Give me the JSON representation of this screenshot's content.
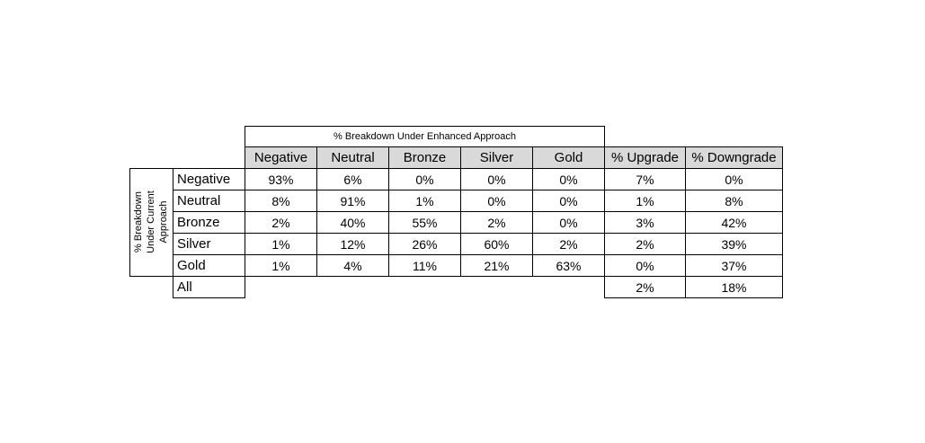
{
  "table": {
    "column_group_label": "% Breakdown Under Enhanced Approach",
    "row_group_label": "% Breakdown Under Current Approach",
    "columns": [
      "Negative",
      "Neutral",
      "Bronze",
      "Silver",
      "Gold",
      "% Upgrade",
      "% Downgrade"
    ],
    "rows": [
      {
        "label": "Negative",
        "cells": [
          "93%",
          "6%",
          "0%",
          "0%",
          "0%",
          "7%",
          "0%"
        ]
      },
      {
        "label": "Neutral",
        "cells": [
          "8%",
          "91%",
          "1%",
          "0%",
          "0%",
          "1%",
          "8%"
        ]
      },
      {
        "label": "Bronze",
        "cells": [
          "2%",
          "40%",
          "55%",
          "2%",
          "0%",
          "3%",
          "42%"
        ]
      },
      {
        "label": "Silver",
        "cells": [
          "1%",
          "12%",
          "26%",
          "60%",
          "2%",
          "2%",
          "39%"
        ]
      },
      {
        "label": "Gold",
        "cells": [
          "1%",
          "4%",
          "11%",
          "21%",
          "63%",
          "0%",
          "37%"
        ]
      }
    ],
    "all_row": {
      "label": "All",
      "upgrade": "2%",
      "downgrade": "18%"
    }
  }
}
